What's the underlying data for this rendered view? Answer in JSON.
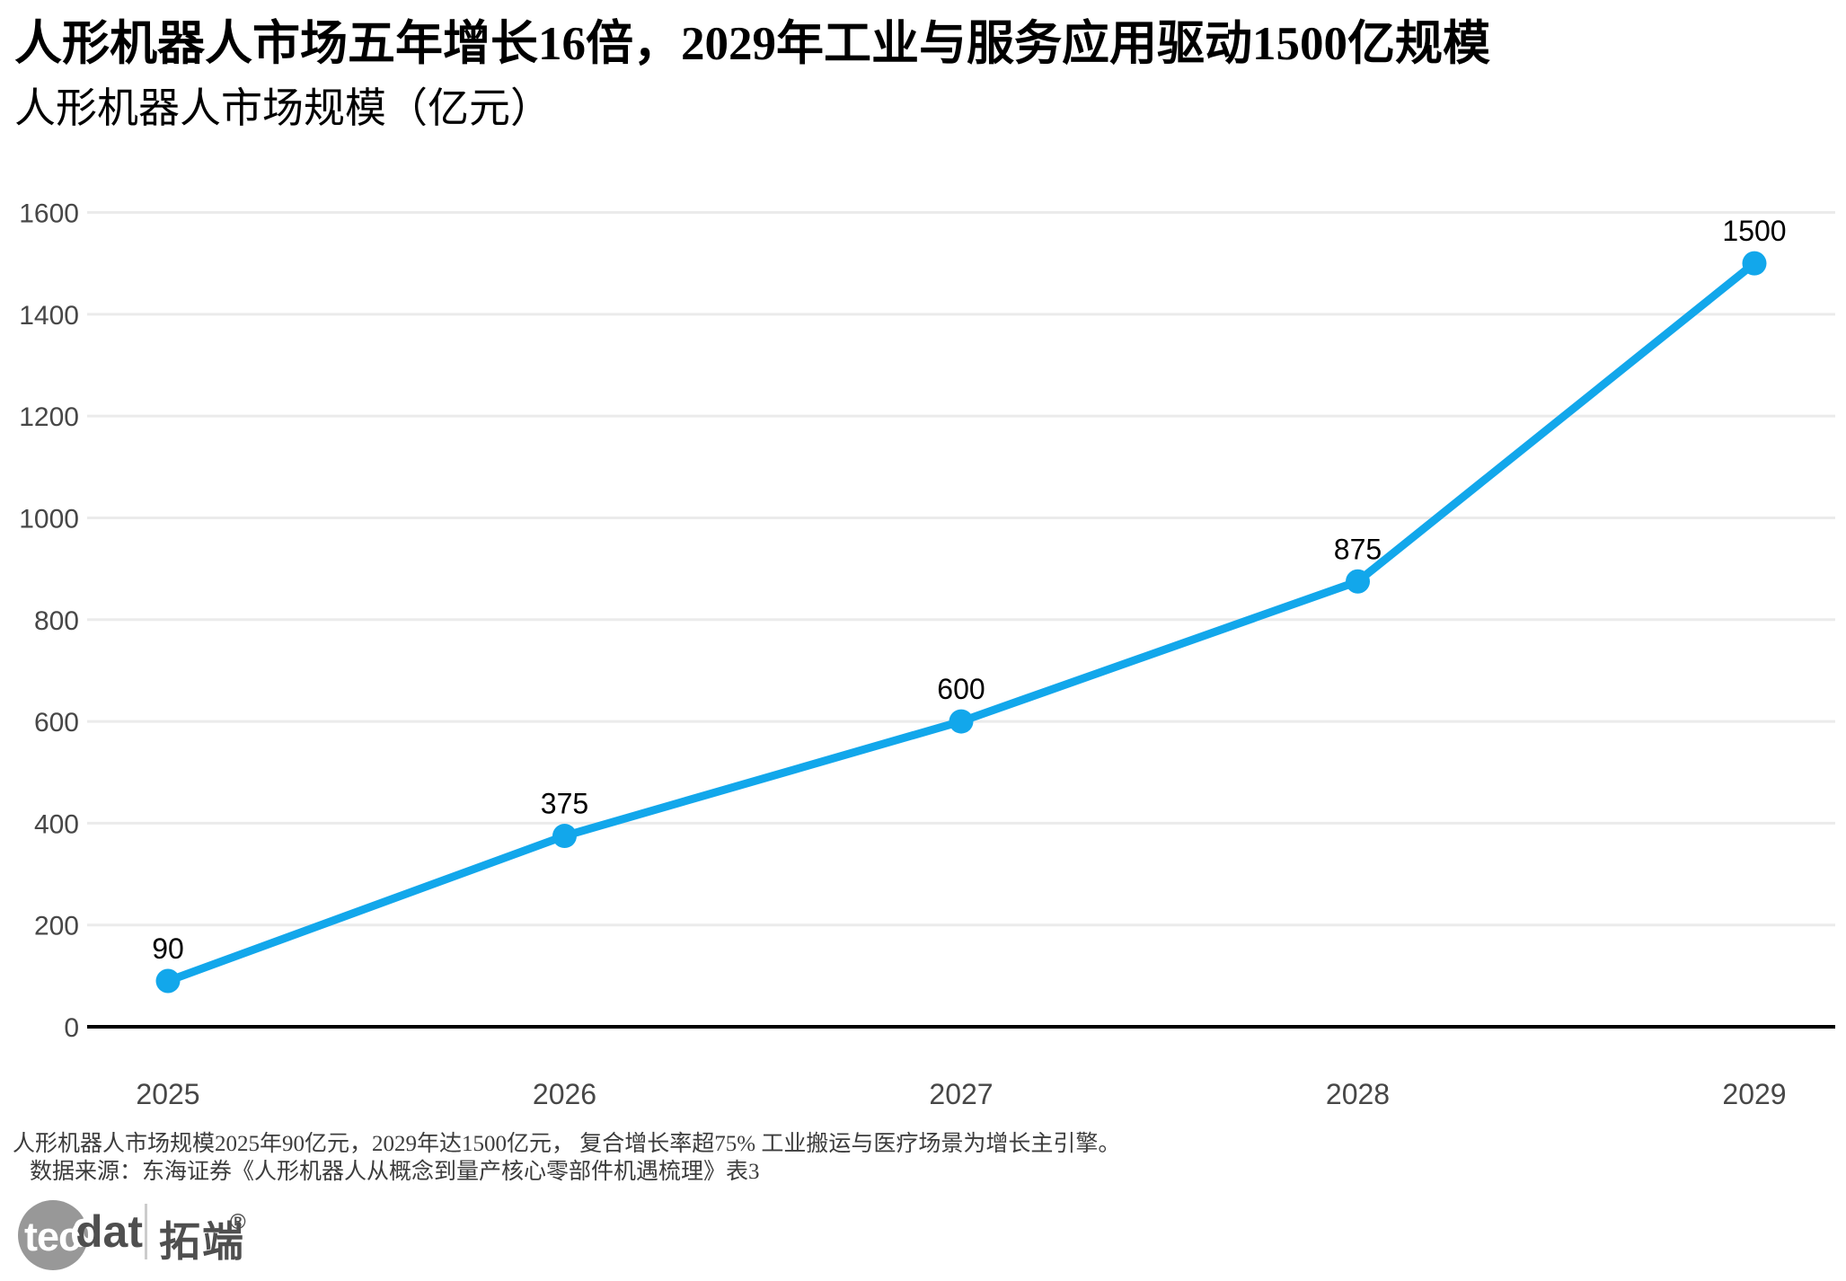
{
  "header": {
    "title": "人形机器人市场五年增长16倍，2029年工业与服务应用驱动1500亿规模",
    "subtitle": "人形机器人市场规模（亿元）"
  },
  "chart_data": {
    "type": "line",
    "title": "人形机器人市场规模（亿元）",
    "categories": [
      "2025",
      "2026",
      "2027",
      "2028",
      "2029"
    ],
    "values": [
      90,
      375,
      600,
      875,
      1500
    ],
    "xlabel": "",
    "ylabel": "",
    "ylim": [
      0,
      1600
    ],
    "yticks": [
      0,
      200,
      400,
      600,
      800,
      1000,
      1200,
      1400,
      1600
    ],
    "grid": true,
    "legend": "none",
    "line_color": "#12a7eb",
    "marker_color": "#12a7eb",
    "label_color": "#000000",
    "tick_color": "#474747",
    "grid_color": "#ebebeb",
    "axis_color": "#000000"
  },
  "footer": {
    "note": "人形机器人市场规模2025年90亿元，2029年达1500亿元， 复合增长率超75% 工业搬运与医疗场景为增长主引擎。",
    "source": "数据来源：东海证券《人形机器人从概念到量产核心零部件机遇梳理》表3"
  },
  "logo": {
    "circle_text": "tec",
    "wordmark": "dat",
    "cjk_name": "拓端",
    "registered_mark": "®"
  }
}
